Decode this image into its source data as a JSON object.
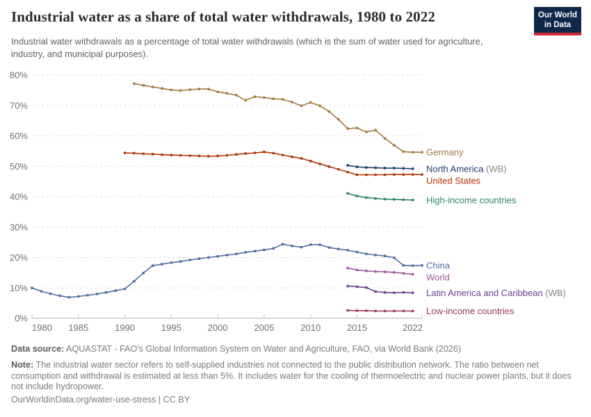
{
  "header": {
    "logo": {
      "line1": "Our World",
      "line2": "in Data",
      "bg_color": "#0d2849",
      "accent_color": "#cb2b37"
    }
  },
  "chart_data": {
    "type": "line",
    "title": "Industrial water as a share of total water withdrawals, 1980 to 2022",
    "subtitle": "Industrial water withdrawals as a percentage of total water withdrawals (which is the sum of water used for agriculture, industry, and municipal purposes).",
    "xlabel": "",
    "ylabel": "",
    "xlim": [
      1980,
      2022
    ],
    "ylim": [
      0,
      80
    ],
    "x_ticks": [
      1980,
      1985,
      1990,
      1995,
      2000,
      2005,
      2010,
      2015,
      2022
    ],
    "y_ticks": [
      0,
      10,
      20,
      30,
      40,
      50,
      60,
      70,
      80
    ],
    "y_tick_suffix": "%",
    "grid": true,
    "grid_style": "dashed",
    "legend_position": "labels-at-line-ends",
    "series": [
      {
        "name": "Germany",
        "label": "Germany",
        "label_suffix": "",
        "color": "#a2793f",
        "start_year": 1991,
        "values": [
          77.2,
          76.6,
          76.1,
          75.6,
          75.1,
          74.9,
          75.2,
          75.4,
          75.4,
          74.5,
          74.0,
          73.4,
          71.7,
          72.9,
          72.6,
          72.2,
          72.0,
          71.1,
          69.9,
          71.0,
          69.9,
          68.0,
          65.4,
          62.4,
          62.6,
          61.3,
          61.9,
          59.2,
          56.9,
          54.8,
          54.6,
          54.6
        ]
      },
      {
        "name": "North America (WB)",
        "label": "North America",
        "label_suffix": " (WB)",
        "color": "#1d3d70",
        "start_year": 2014,
        "values": [
          50.3,
          49.8,
          49.6,
          49.5,
          49.4,
          49.4,
          49.3,
          49.2
        ]
      },
      {
        "name": "United States",
        "label": "United States",
        "label_suffix": "",
        "color": "#b13507",
        "start_year": 1990,
        "values": [
          54.4,
          54.3,
          54.1,
          54.0,
          53.8,
          53.7,
          53.6,
          53.5,
          53.4,
          53.3,
          53.4,
          53.6,
          53.9,
          54.2,
          54.4,
          54.7,
          54.3,
          53.7,
          53.1,
          52.6,
          51.7,
          50.8,
          49.9,
          49.0,
          48.1,
          47.2,
          47.2,
          47.2,
          47.2,
          47.3,
          47.3,
          47.3,
          47.3
        ]
      },
      {
        "name": "High-income countries",
        "label": "High-income countries",
        "label_suffix": "",
        "color": "#2c8465",
        "start_year": 2014,
        "values": [
          41.1,
          40.2,
          39.7,
          39.4,
          39.2,
          39.1,
          39.0,
          38.9
        ]
      },
      {
        "name": "China",
        "label": "China",
        "label_suffix": "",
        "color": "#4c6da4",
        "start_year": 1980,
        "values": [
          10.0,
          8.9,
          8.1,
          7.4,
          6.9,
          7.2,
          7.6,
          8.0,
          8.5,
          9.1,
          9.7,
          12.2,
          14.9,
          17.3,
          17.8,
          18.3,
          18.7,
          19.2,
          19.6,
          20.0,
          20.4,
          20.8,
          21.2,
          21.7,
          22.1,
          22.5,
          23.0,
          24.4,
          23.8,
          23.4,
          24.2,
          24.2,
          23.3,
          22.8,
          22.4,
          21.8,
          21.2,
          20.8,
          20.5,
          19.9,
          17.4,
          17.3,
          17.4
        ]
      },
      {
        "name": "World",
        "label": "World",
        "label_suffix": "",
        "color": "#a2559c",
        "start_year": 2014,
        "values": [
          16.5,
          15.9,
          15.6,
          15.4,
          15.3,
          15.1,
          14.8,
          14.5
        ]
      },
      {
        "name": "Latin America and Caribbean (WB)",
        "label": "Latin America and Caribbean",
        "label_suffix": " (WB)",
        "color": "#6d3e91",
        "start_year": 2014,
        "values": [
          10.6,
          10.4,
          10.1,
          8.8,
          8.5,
          8.4,
          8.5,
          8.4
        ]
      },
      {
        "name": "Low-income countries",
        "label": "Low-income countries",
        "label_suffix": "",
        "color": "#9a3a52",
        "start_year": 2014,
        "values": [
          2.6,
          2.5,
          2.5,
          2.4,
          2.4,
          2.4,
          2.4,
          2.4
        ]
      }
    ]
  },
  "footer": {
    "datasource_label": "Data source:",
    "datasource_text": " AQUASTAT - FAO's Global Information System on Water and Agriculture, FAO, via World Bank (2026)",
    "note_label": "Note:",
    "note_text": " The industrial water sector refers to self-supplied industries not connected to the public distribution network. The ratio between net consumption and withdrawal is estimated at less than 5%. It includes water for the cooling of thermoelectric and nuclear power plants, but it does not include hydropower.",
    "url": "OurWorldinData.org/water-use-stress",
    "separator": " | ",
    "license": "CC BY"
  }
}
